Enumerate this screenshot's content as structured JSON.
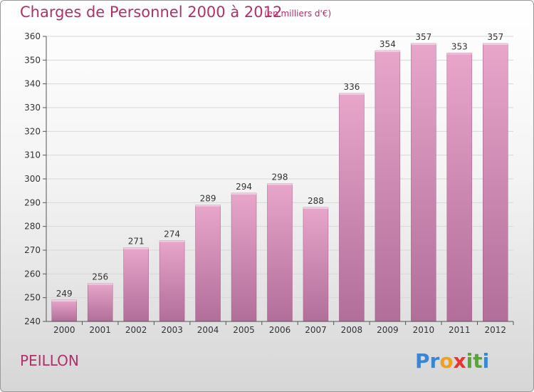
{
  "header": {
    "title": "Charges de Personnel 2000 à 2012",
    "subtitle": "(en milliers d'€)"
  },
  "footer": {
    "place": "PEILLON",
    "logo": {
      "text": "Proxiti",
      "letters": [
        {
          "char": "P",
          "color": "#3a86d6"
        },
        {
          "char": "r",
          "color": "#3a86d6"
        },
        {
          "char": "o",
          "color": "#f0a01e"
        },
        {
          "char": "x",
          "color": "#e8362e"
        },
        {
          "char": "i",
          "color": "#55a832"
        },
        {
          "char": "t",
          "color": "#55a832"
        },
        {
          "char": "i",
          "color": "#3a86d6"
        }
      ]
    }
  },
  "chart_data": {
    "type": "bar",
    "title": "Charges de Personnel 2000 à 2012",
    "subtitle": "(en milliers d'€)",
    "categories": [
      "2000",
      "2001",
      "2002",
      "2003",
      "2004",
      "2005",
      "2006",
      "2007",
      "2008",
      "2009",
      "2010",
      "2011",
      "2012"
    ],
    "values": [
      249,
      256,
      271,
      274,
      289,
      294,
      298,
      288,
      336,
      354,
      357,
      353,
      357
    ],
    "ylim": [
      240,
      360
    ],
    "yticks": [
      240,
      250,
      260,
      270,
      280,
      290,
      300,
      310,
      320,
      330,
      340,
      350,
      360
    ],
    "grid": true,
    "colors": {
      "bar_top": "#e8a6cb",
      "bar_bottom": "#b06e99",
      "grid": "#d8d8d8",
      "text": "#333333",
      "accent": "#b0306a"
    }
  }
}
